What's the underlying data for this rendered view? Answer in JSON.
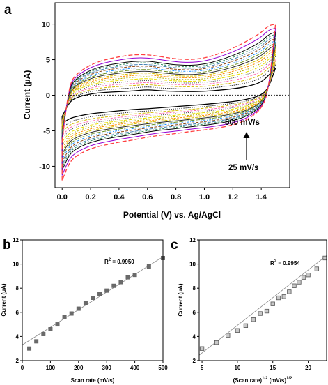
{
  "panels": {
    "a": {
      "letter": "a",
      "ylabel": "Current (μA)",
      "xlabel": "Potential (V) vs. Ag/AgCl",
      "annot_top": "500 mV/s",
      "annot_bottom": "25 mV/s"
    },
    "b": {
      "letter": "b",
      "ylabel": "Current (μA)",
      "xlabel": "Scan rate (mV/s)",
      "r2_base": "R",
      "r2_sup": "2",
      "r2_value": " = 0.9950"
    },
    "c": {
      "letter": "c",
      "ylabel": "Current (μA)",
      "xlabel_pre": "(Scan rate)",
      "xlabel_sup1": "1/2",
      "xlabel_mid": " (mV/s)",
      "xlabel_sup2": "1/2",
      "r2_base": "R",
      "r2_sup": "2",
      "r2_value": " = 0.9954"
    }
  },
  "chart_data": [
    {
      "type": "line",
      "panel": "a",
      "xlabel": "Potential (V) vs. Ag/AgCl",
      "ylabel": "Current (μA)",
      "xlim": [
        -0.05,
        1.6
      ],
      "ylim": [
        -13,
        13
      ],
      "xticks": [
        0.0,
        0.2,
        0.4,
        0.6,
        0.8,
        1.0,
        1.2,
        1.4
      ],
      "xtick_labels": [
        "0.0",
        "0.2",
        "0.4",
        "0.6",
        "0.8",
        "1.0",
        "1.2",
        "1.4"
      ],
      "yticks": [
        -10,
        -5,
        0,
        5,
        10
      ],
      "ytick_labels": [
        "-10",
        "-5",
        "0",
        "5",
        "10"
      ],
      "annotations": [
        "500 mV/s",
        "25 mV/s"
      ],
      "scan_rates": [
        25,
        50,
        75,
        100,
        125,
        150,
        175,
        200,
        225,
        250,
        275,
        300,
        325,
        350,
        375,
        400,
        450,
        500
      ],
      "cycle_anchor_points": {
        "potential": [
          0.0,
          0.05,
          0.1,
          0.2,
          0.3,
          0.4,
          0.5,
          0.6,
          0.7,
          0.8,
          0.9,
          1.0,
          1.1,
          1.2,
          1.3,
          1.4,
          1.45,
          1.5
        ],
        "anodic_500": [
          -6.5,
          1.5,
          3.0,
          4.3,
          5.0,
          5.4,
          5.7,
          5.7,
          5.4,
          5.1,
          5.0,
          5.2,
          5.8,
          6.6,
          7.6,
          8.8,
          9.8,
          10.0
        ],
        "cathodic_500": [
          -12.0,
          -9.5,
          -8.5,
          -7.5,
          -7.0,
          -6.6,
          -6.3,
          -5.9,
          -5.6,
          -5.4,
          -5.1,
          -4.9,
          -4.6,
          -4.2,
          -3.5,
          -2.0,
          0.5,
          10.0
        ],
        "anodic_25": [
          -3.0,
          -1.0,
          -0.3,
          0.2,
          0.4,
          0.5,
          0.6,
          0.8,
          0.6,
          0.55,
          0.5,
          0.55,
          0.7,
          0.9,
          1.2,
          1.8,
          2.8,
          3.8
        ],
        "cathodic_25": [
          -4.0,
          -3.3,
          -3.0,
          -2.6,
          -2.4,
          -2.2,
          -2.0,
          -1.9,
          -1.75,
          -1.6,
          -1.45,
          -1.3,
          -1.1,
          -0.9,
          -0.6,
          0.0,
          1.0,
          3.8
        ]
      }
    },
    {
      "type": "scatter",
      "panel": "b",
      "xlabel": "Scan rate (mV/s)",
      "ylabel": "Current (μA)",
      "xlim": [
        0,
        500
      ],
      "ylim": [
        2,
        12
      ],
      "xticks": [
        0,
        100,
        200,
        300,
        400,
        500
      ],
      "yticks": [
        2,
        4,
        6,
        8,
        10,
        12
      ],
      "x": [
        25,
        50,
        75,
        100,
        125,
        150,
        175,
        200,
        225,
        250,
        275,
        300,
        325,
        350,
        375,
        400,
        450,
        500
      ],
      "y": [
        3.0,
        3.6,
        4.2,
        4.6,
        5.0,
        5.6,
        5.9,
        6.3,
        6.8,
        7.2,
        7.5,
        7.8,
        8.2,
        8.5,
        8.9,
        9.1,
        9.8,
        10.5
      ],
      "fit_line": {
        "x": [
          0,
          500
        ],
        "y": [
          3.3,
          10.6
        ]
      },
      "annotations": [
        "R2 = 0.9950"
      ]
    },
    {
      "type": "scatter",
      "panel": "c",
      "xlabel": "(Scan rate)1/2 (mV/s)1/2",
      "ylabel": "Current (μA)",
      "xlim": [
        4.6,
        22.6
      ],
      "ylim": [
        2,
        12
      ],
      "xticks": [
        5,
        10,
        15,
        20
      ],
      "yticks": [
        2,
        4,
        6,
        8,
        10,
        12
      ],
      "x": [
        5.0,
        7.07,
        8.66,
        10.0,
        11.18,
        12.25,
        13.23,
        14.14,
        15.0,
        15.81,
        16.58,
        17.32,
        18.03,
        18.71,
        19.36,
        20.0,
        21.21,
        22.36
      ],
      "y": [
        3.0,
        3.5,
        4.1,
        4.5,
        4.9,
        5.4,
        5.9,
        6.1,
        6.7,
        7.2,
        7.3,
        7.7,
        8.2,
        8.5,
        8.9,
        9.1,
        9.6,
        10.5
      ],
      "fit_line": {
        "x": [
          4.6,
          22.6
        ],
        "y": [
          2.45,
          10.7
        ]
      },
      "annotations": [
        "R2 = 0.9954"
      ]
    }
  ]
}
